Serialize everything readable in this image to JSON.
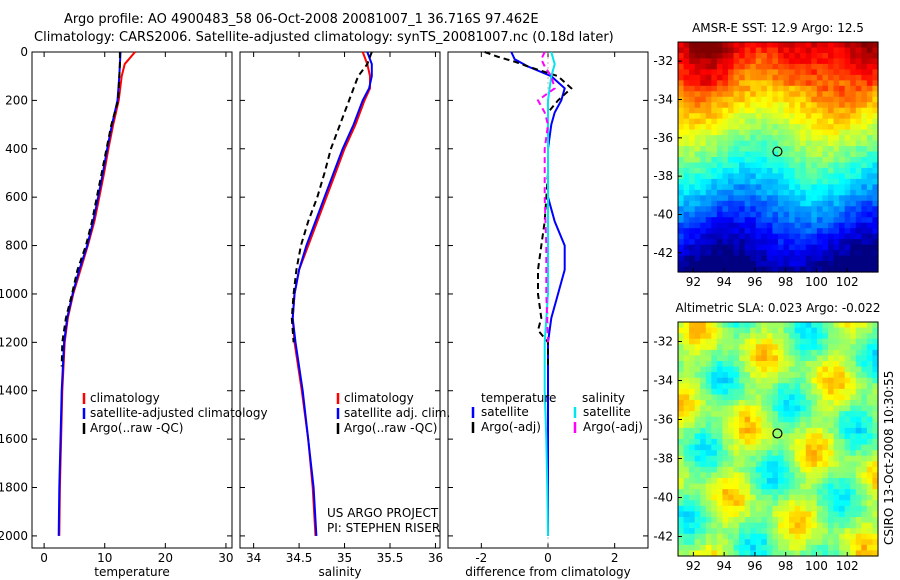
{
  "header": {
    "title_line1": "Argo profile: AO 4900483_58 06-Oct-2008 20081007_1 36.716S 97.462E",
    "title_line2": "Climatology: CARS2006. Satellite-adjusted climatology: synTS_20081007.nc (0.18d later)"
  },
  "side_label": "CSIRO 13-Oct-2008 10:30:55",
  "colors": {
    "climatology": "#ff0000",
    "satellite": "#0000ff",
    "argo": "#000000",
    "sal_satellite": "#00e5ee",
    "sal_argo": "#ff00ff"
  },
  "chart_data": [
    {
      "type": "line",
      "name": "temperature-profile",
      "xlabel": "temperature",
      "ylabel": "",
      "xlim": [
        -2,
        31
      ],
      "ylim": [
        2050,
        0
      ],
      "xticks": [
        0,
        10,
        20,
        30
      ],
      "yticks": [
        0,
        200,
        400,
        600,
        800,
        1000,
        1200,
        1400,
        1600,
        1800,
        2000
      ],
      "legend": [
        "climatology",
        "satellite-adjusted climatology",
        "Argo(..raw -QC)"
      ],
      "series": [
        {
          "name": "climatology",
          "color": "#ff0000",
          "style": "solid",
          "depth": [
            0,
            50,
            100,
            200,
            300,
            400,
            500,
            600,
            700,
            800,
            900,
            1000,
            1100,
            1200,
            1400,
            1600,
            1800,
            2000
          ],
          "values": [
            15.0,
            13.3,
            12.8,
            12.3,
            11.4,
            10.6,
            9.9,
            9.1,
            8.3,
            7.2,
            6.0,
            4.8,
            3.9,
            3.4,
            3.0,
            2.8,
            2.6,
            2.5
          ]
        },
        {
          "name": "satellite-adjusted climatology",
          "color": "#0000ff",
          "style": "solid",
          "depth": [
            0,
            50,
            100,
            200,
            300,
            400,
            500,
            600,
            700,
            800,
            900,
            1000,
            1100,
            1200,
            1400,
            1600,
            1800,
            2000
          ],
          "values": [
            12.6,
            12.5,
            12.4,
            12.1,
            11.2,
            10.4,
            9.7,
            8.9,
            8.1,
            7.1,
            5.8,
            4.7,
            3.8,
            3.3,
            2.9,
            2.7,
            2.5,
            2.4
          ]
        },
        {
          "name": "Argo",
          "color": "#000000",
          "style": "dash",
          "depth": [
            0,
            50,
            100,
            200,
            300,
            400,
            500,
            600,
            700,
            800,
            900,
            1000,
            1100,
            1200,
            1300
          ],
          "values": [
            12.5,
            12.5,
            12.4,
            12.2,
            11.1,
            10.3,
            9.5,
            8.7,
            7.9,
            6.9,
            5.5,
            4.6,
            3.6,
            3.0,
            2.9
          ]
        }
      ]
    },
    {
      "type": "line",
      "name": "salinity-profile",
      "xlabel": "salinity",
      "ylabel": "",
      "xlim": [
        33.85,
        36.05
      ],
      "ylim": [
        2050,
        0
      ],
      "xticks": [
        34,
        34.5,
        35,
        35.5,
        36
      ],
      "yticks": [
        0,
        200,
        400,
        600,
        800,
        1000,
        1200,
        1400,
        1600,
        1800,
        2000
      ],
      "legend": [
        "climatology",
        "satellite adj. clim.",
        "Argo(..raw -QC)"
      ],
      "series": [
        {
          "name": "climatology",
          "color": "#ff0000",
          "style": "solid",
          "depth": [
            0,
            50,
            100,
            150,
            200,
            300,
            400,
            500,
            600,
            700,
            800,
            900,
            1000,
            1100,
            1200,
            1400,
            1600,
            1800,
            2000
          ],
          "values": [
            35.2,
            35.25,
            35.28,
            35.28,
            35.22,
            35.12,
            35.0,
            34.9,
            34.8,
            34.7,
            34.6,
            34.5,
            34.45,
            34.43,
            34.45,
            34.53,
            34.6,
            34.65,
            34.68
          ]
        },
        {
          "name": "satellite adj. clim.",
          "color": "#0000ff",
          "style": "solid",
          "depth": [
            0,
            50,
            100,
            150,
            200,
            300,
            400,
            500,
            600,
            700,
            800,
            900,
            1000,
            1100,
            1200,
            1400,
            1600,
            1800,
            2000
          ],
          "values": [
            35.25,
            35.3,
            35.3,
            35.27,
            35.2,
            35.1,
            34.98,
            34.88,
            34.78,
            34.68,
            34.58,
            34.5,
            34.45,
            34.43,
            34.46,
            34.54,
            34.6,
            34.66,
            34.69
          ]
        },
        {
          "name": "Argo",
          "color": "#000000",
          "style": "dash",
          "depth": [
            0,
            50,
            100,
            150,
            200,
            250,
            300,
            400,
            500,
            600,
            700,
            800,
            900,
            1000,
            1100,
            1200
          ],
          "values": [
            35.3,
            35.25,
            35.15,
            35.1,
            35.05,
            35.0,
            34.95,
            34.85,
            34.78,
            34.7,
            34.6,
            34.52,
            34.47,
            34.44,
            34.42,
            34.44
          ]
        }
      ]
    },
    {
      "type": "line",
      "name": "difference-profile",
      "xlabel": "difference from climatology",
      "ylabel": "",
      "xlim": [
        -3.0,
        3.0
      ],
      "ylim": [
        2050,
        0
      ],
      "xticks": [
        -2,
        0,
        2
      ],
      "yticks": [
        0,
        200,
        400,
        600,
        800,
        1000,
        1200,
        1400,
        1600,
        1800,
        2000
      ],
      "legend": [
        "temperature",
        "satellite",
        "Argo(-adj)",
        "salinity",
        "satellite",
        "Argo(-adj)"
      ],
      "series": [
        {
          "name": "temperature satellite",
          "color": "#0000ff",
          "style": "solid",
          "depth": [
            0,
            30,
            60,
            100,
            150,
            200,
            250,
            300,
            400,
            500,
            600,
            700,
            800,
            900,
            1000,
            1100,
            1200,
            1400,
            1600,
            1800,
            2000
          ],
          "values": [
            -1.1,
            -1.0,
            -0.6,
            0.1,
            0.5,
            0.4,
            0.2,
            0.1,
            0.0,
            0.0,
            0.0,
            0.2,
            0.5,
            0.5,
            0.3,
            0.1,
            0.0,
            0.0,
            0.0,
            0.0,
            0.0
          ]
        },
        {
          "name": "temperature Argo(-adj)",
          "color": "#000000",
          "style": "dash",
          "depth": [
            0,
            20,
            40,
            60,
            100,
            150,
            200,
            250,
            300,
            500,
            700,
            800,
            900,
            1000,
            1100,
            1150,
            1200,
            1300
          ],
          "values": [
            -1.9,
            -1.5,
            -1.0,
            -0.6,
            0.3,
            0.7,
            0.3,
            0.0,
            0.0,
            0.0,
            -0.1,
            -0.2,
            -0.3,
            -0.3,
            -0.2,
            -0.3,
            0.0,
            0.0
          ]
        },
        {
          "name": "salinity satellite",
          "color": "#00e5ee",
          "style": "solid",
          "depth": [
            0,
            50,
            100,
            200,
            300,
            500,
            700,
            900,
            1000,
            1200,
            1400,
            1600,
            1800,
            2000
          ],
          "values": [
            0.1,
            0.2,
            0.1,
            0.0,
            0.0,
            0.0,
            0.0,
            0.0,
            0.0,
            -0.1,
            -0.1,
            -0.05,
            -0.02,
            0.0
          ]
        },
        {
          "name": "salinity Argo(-adj)",
          "color": "#ff00ff",
          "style": "dash",
          "depth": [
            0,
            30,
            60,
            100,
            150,
            200,
            250,
            300,
            400,
            600,
            800,
            1000,
            1200
          ],
          "values": [
            -0.1,
            -0.2,
            -0.1,
            0.1,
            0.2,
            -0.3,
            -0.1,
            0.0,
            -0.1,
            -0.1,
            -0.05,
            -0.05,
            0.0
          ]
        }
      ]
    },
    {
      "type": "heatmap",
      "name": "sst-map",
      "title": "AMSR-E SST: 12.9  Argo: 12.5",
      "xticks": [
        92,
        94,
        96,
        98,
        100,
        102
      ],
      "yticks": [
        -32,
        -34,
        -36,
        -38,
        -40,
        -42
      ],
      "xlim": [
        91,
        104
      ],
      "ylim": [
        -43,
        -31
      ],
      "marker": {
        "lon": 97.462,
        "lat": -36.716
      },
      "colormap": "jet"
    },
    {
      "type": "heatmap",
      "name": "sla-map",
      "title": "Altimetric SLA: 0.023  Argo: -0.022",
      "xticks": [
        92,
        94,
        96,
        98,
        100,
        102
      ],
      "yticks": [
        -32,
        -34,
        -36,
        -38,
        -40,
        -42
      ],
      "xlim": [
        91,
        104
      ],
      "ylim": [
        -43,
        -31
      ],
      "marker": {
        "lon": 97.462,
        "lat": -36.716
      },
      "colormap": "jet"
    }
  ],
  "annotations": {
    "project": "US ARGO PROJECT",
    "pi": "PI: STEPHEN RISER"
  }
}
